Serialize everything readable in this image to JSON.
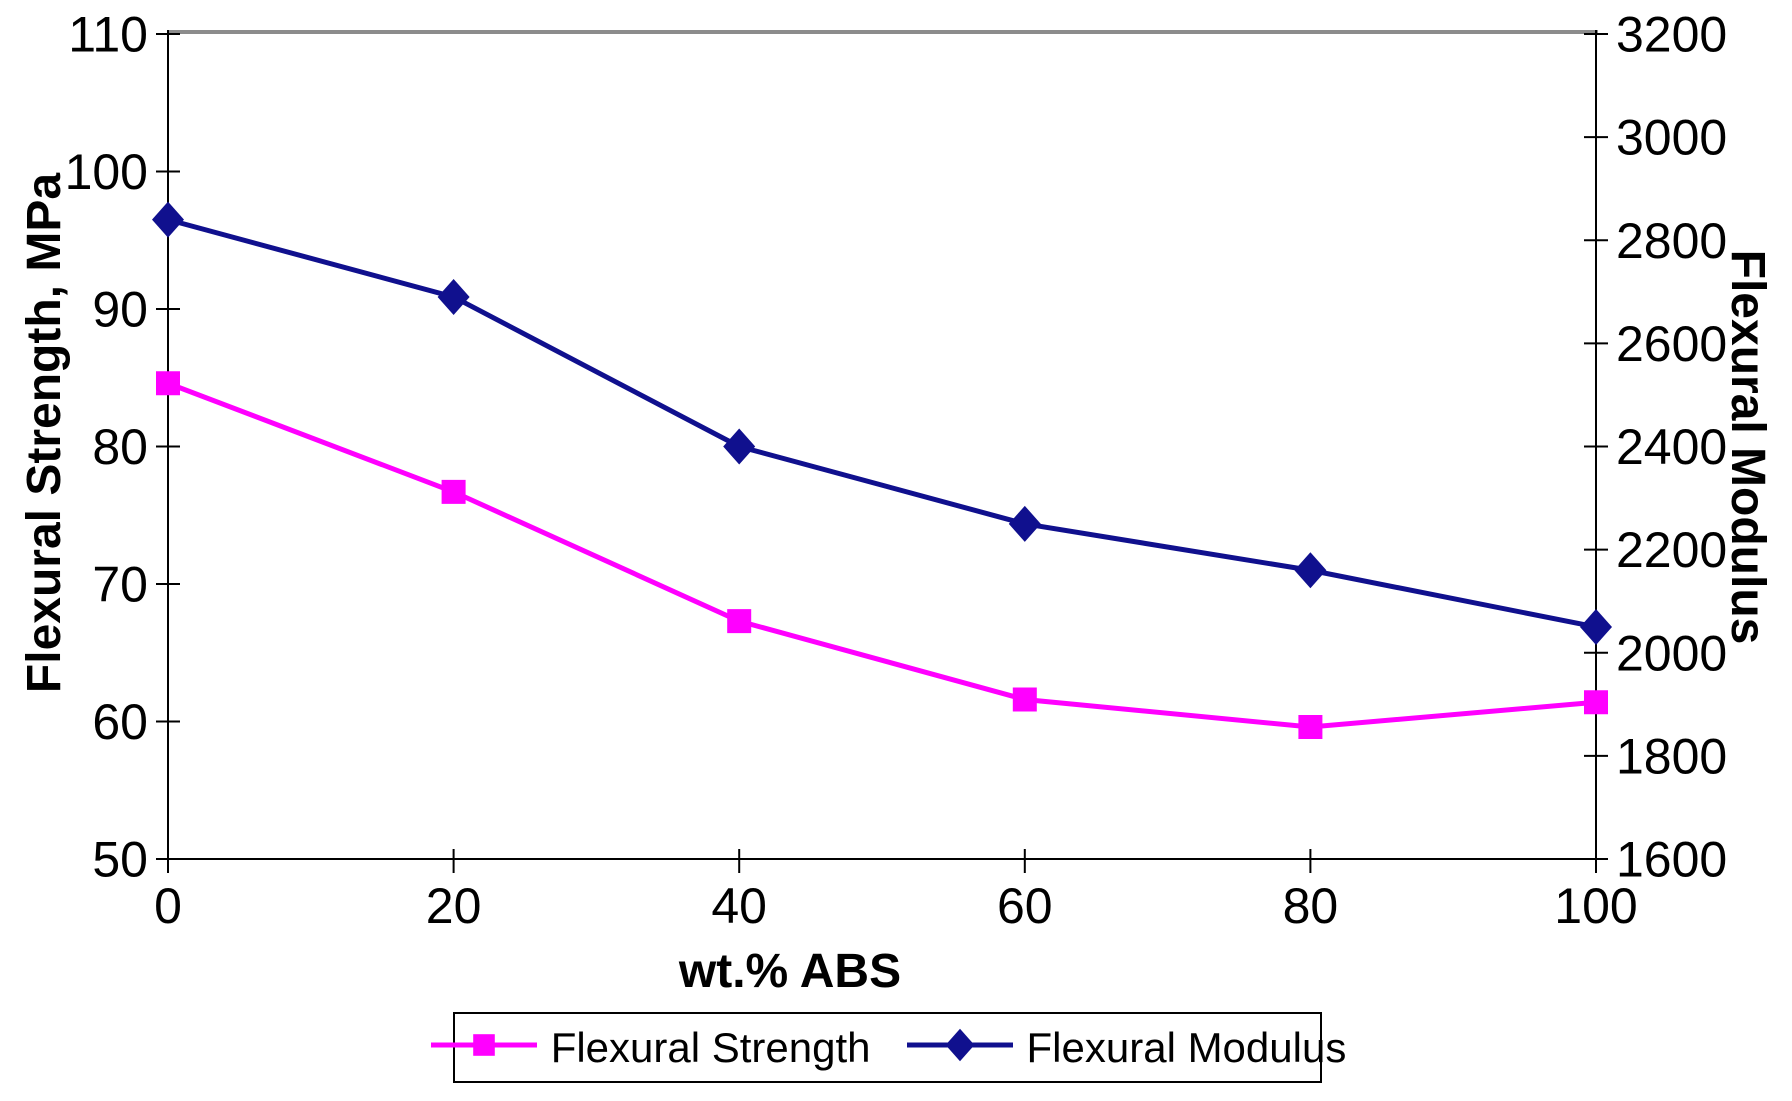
{
  "chart_data": {
    "type": "line",
    "title": "",
    "xlabel": "wt.% ABS",
    "ylabel_left": "Flexural Strength, MPa",
    "ylabel_right": "Flexural Modulus",
    "x": [
      0,
      20,
      40,
      60,
      80,
      100
    ],
    "x_ticks": [
      0,
      20,
      40,
      60,
      80,
      100
    ],
    "xlim": [
      0,
      100
    ],
    "left_axis": {
      "ticks": [
        110,
        100,
        90,
        80,
        70,
        60,
        50
      ],
      "range": [
        50,
        110
      ]
    },
    "right_axis": {
      "ticks": [
        3200,
        3000,
        2800,
        2600,
        2400,
        2200,
        2000,
        1800,
        1600
      ],
      "range": [
        1600,
        3200
      ]
    },
    "series": [
      {
        "name": "Flexural Strength",
        "axis": "left",
        "color": "#FF00FF",
        "marker": "square",
        "values": [
          84.6,
          76.7,
          67.3,
          61.6,
          59.6,
          61.4
        ]
      },
      {
        "name": "Flexural Modulus",
        "axis": "right",
        "color": "#10108E",
        "marker": "diamond",
        "values": [
          2840,
          2690,
          2400,
          2250,
          2160,
          2050
        ]
      }
    ],
    "legend_position": "bottom",
    "grid": false,
    "colors": {
      "axis_line": "#000000",
      "top_border": "#8C8C8C",
      "text": "#000000",
      "background": "#FFFFFF"
    }
  }
}
